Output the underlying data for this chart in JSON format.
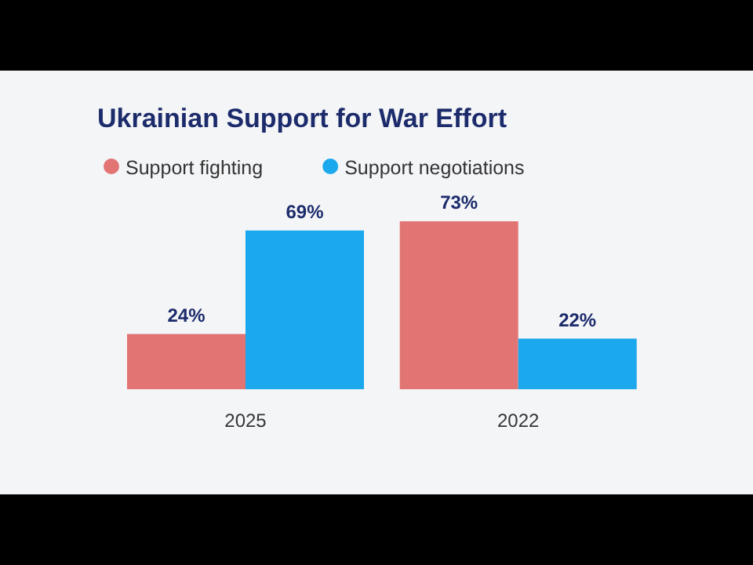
{
  "chart_data": {
    "type": "bar",
    "title": "Ukrainian Support for War Effort",
    "categories": [
      "2025",
      "2022"
    ],
    "series": [
      {
        "name": "Support fighting",
        "color": "#e27474",
        "values": [
          24,
          73
        ],
        "value_labels": [
          "24%",
          "73%"
        ]
      },
      {
        "name": "Support negotiations",
        "color": "#1ba8ec",
        "values": [
          69,
          22
        ],
        "value_labels": [
          "69%",
          "22%"
        ]
      }
    ],
    "legend": "top left"
  }
}
